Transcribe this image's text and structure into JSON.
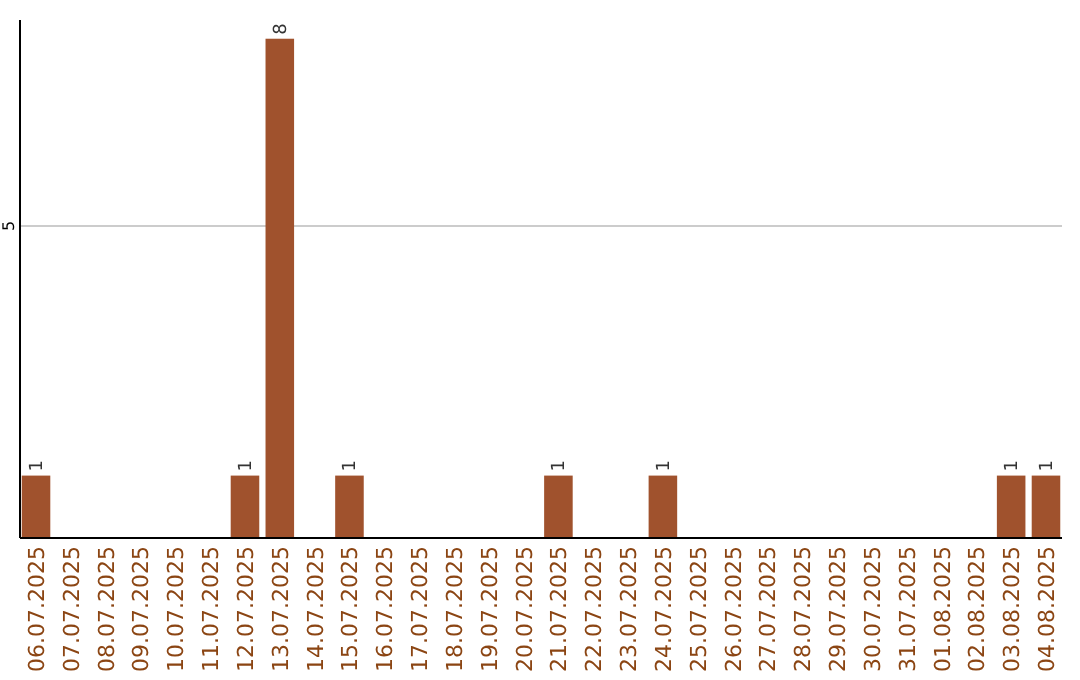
{
  "chart_data": {
    "type": "bar",
    "categories": [
      "06.07.2025",
      "07.07.2025",
      "08.07.2025",
      "09.07.2025",
      "10.07.2025",
      "11.07.2025",
      "12.07.2025",
      "13.07.2025",
      "14.07.2025",
      "15.07.2025",
      "16.07.2025",
      "17.07.2025",
      "18.07.2025",
      "19.07.2025",
      "20.07.2025",
      "21.07.2025",
      "22.07.2025",
      "23.07.2025",
      "24.07.2025",
      "25.07.2025",
      "26.07.2025",
      "27.07.2025",
      "28.07.2025",
      "29.07.2025",
      "30.07.2025",
      "31.07.2025",
      "01.08.2025",
      "02.08.2025",
      "03.08.2025",
      "04.08.2025"
    ],
    "values": [
      1,
      0,
      0,
      0,
      0,
      0,
      1,
      8,
      0,
      1,
      0,
      0,
      0,
      0,
      0,
      1,
      0,
      0,
      1,
      0,
      0,
      0,
      0,
      0,
      0,
      0,
      0,
      0,
      1,
      1
    ],
    "value_labels": [
      "1",
      null,
      null,
      null,
      null,
      null,
      "1",
      "8",
      null,
      "1",
      null,
      null,
      null,
      null,
      null,
      "1",
      null,
      null,
      "1",
      null,
      null,
      null,
      null,
      null,
      null,
      null,
      null,
      null,
      "1",
      "1"
    ],
    "color": "#a0522d",
    "ylim": [
      0,
      8.3
    ],
    "yticks": [
      5
    ],
    "grid": "y"
  }
}
